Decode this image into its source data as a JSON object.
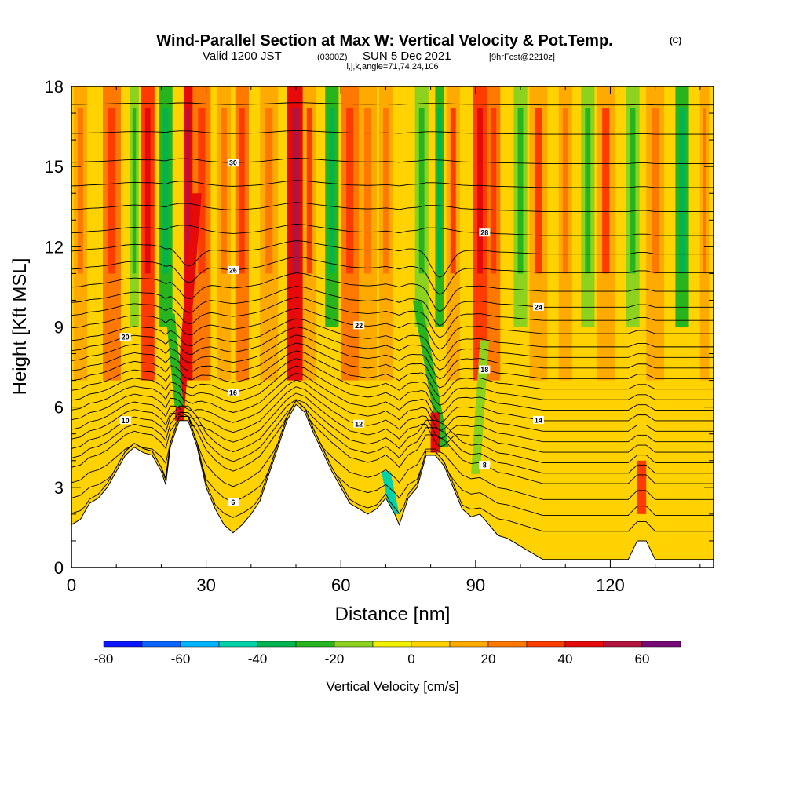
{
  "header": {
    "title": "Wind-Parallel Section at Max W: Vertical Velocity & Pot.Temp.",
    "title_mark": "(C)",
    "subtitle_valid": "Valid 1200 JST",
    "subtitle_utc": "(0300Z)",
    "subtitle_date": "SUN 5 Dec 2021",
    "subtitle_fcst": "[9hrFcst@2210z]",
    "params": "i,j,k,angle=71,74,24,106"
  },
  "chart_data": {
    "type": "heatmap",
    "xlabel": "Distance [nm]",
    "ylabel": "Height [Kft MSL]",
    "xlim": [
      0,
      143
    ],
    "ylim": [
      0,
      18
    ],
    "xticks": [
      0,
      30,
      60,
      90,
      120
    ],
    "yticks": [
      0,
      3,
      6,
      9,
      12,
      15,
      18
    ],
    "colorbar": {
      "label": "Vertical Velocity [cm/s]",
      "ticks": [
        -80,
        -60,
        -40,
        -20,
        0,
        20,
        40,
        60
      ],
      "bounds": [
        -80,
        -70,
        -60,
        -50,
        -40,
        -30,
        -20,
        -10,
        0,
        10,
        20,
        30,
        40,
        50,
        60,
        70
      ],
      "colors": [
        "#0a14ff",
        "#0a64ff",
        "#00b4ff",
        "#00d2aa",
        "#00b450",
        "#28b41e",
        "#8cd21e",
        "#f0f000",
        "#ffd200",
        "#ffaa00",
        "#ff7800",
        "#ff3c00",
        "#e60a0a",
        "#b4143c",
        "#780a78"
      ]
    },
    "terrain": [
      [
        0,
        1.6
      ],
      [
        2,
        1.8
      ],
      [
        4,
        2.4
      ],
      [
        6,
        2.6
      ],
      [
        8,
        3.0
      ],
      [
        10,
        3.6
      ],
      [
        12,
        4.2
      ],
      [
        14,
        4.5
      ],
      [
        16,
        4.3
      ],
      [
        18,
        4.2
      ],
      [
        20,
        3.6
      ],
      [
        21,
        3.1
      ],
      [
        22,
        4.5
      ],
      [
        24,
        5.5
      ],
      [
        26,
        5.5
      ],
      [
        28,
        4.5
      ],
      [
        30,
        3.0
      ],
      [
        32,
        2.2
      ],
      [
        34,
        1.6
      ],
      [
        36,
        1.3
      ],
      [
        38,
        1.6
      ],
      [
        40,
        2.0
      ],
      [
        42,
        2.5
      ],
      [
        44,
        3.5
      ],
      [
        46,
        4.5
      ],
      [
        48,
        5.5
      ],
      [
        50,
        6.1
      ],
      [
        52,
        5.8
      ],
      [
        54,
        5.0
      ],
      [
        56,
        4.3
      ],
      [
        58,
        3.6
      ],
      [
        60,
        3.0
      ],
      [
        62,
        2.4
      ],
      [
        64,
        2.2
      ],
      [
        66,
        2.0
      ],
      [
        68,
        2.2
      ],
      [
        70,
        2.6
      ],
      [
        72,
        2.0
      ],
      [
        73,
        1.6
      ],
      [
        75,
        2.6
      ],
      [
        77,
        3.0
      ],
      [
        79,
        4.2
      ],
      [
        81,
        4.2
      ],
      [
        83,
        3.8
      ],
      [
        85,
        3.0
      ],
      [
        87,
        2.2
      ],
      [
        89,
        1.9
      ],
      [
        91,
        2.0
      ],
      [
        93,
        1.6
      ],
      [
        95,
        1.2
      ],
      [
        97,
        1.1
      ],
      [
        99,
        0.9
      ],
      [
        101,
        0.7
      ],
      [
        103,
        0.5
      ],
      [
        105,
        0.3
      ],
      [
        108,
        0.3
      ],
      [
        112,
        0.3
      ],
      [
        118,
        0.3
      ],
      [
        124,
        0.3
      ],
      [
        126,
        1.0
      ],
      [
        128,
        1.0
      ],
      [
        130,
        0.3
      ],
      [
        136,
        0.3
      ],
      [
        143,
        0.3
      ]
    ],
    "columns": [
      {
        "x": 2,
        "w": 3,
        "v": 15
      },
      {
        "x": 9,
        "w": 4,
        "v": 22
      },
      {
        "x": 14,
        "w": 2,
        "v": -15
      },
      {
        "x": 17,
        "w": 3,
        "v": 30
      },
      {
        "x": 21,
        "w": 3,
        "v": -28
      },
      {
        "x": 26,
        "w": 2,
        "v": 45
      },
      {
        "x": 29,
        "w": 4,
        "v": 22
      },
      {
        "x": 34,
        "w": 3,
        "v": 14
      },
      {
        "x": 38,
        "w": 3,
        "v": 24
      },
      {
        "x": 44,
        "w": 4,
        "v": 12
      },
      {
        "x": 50,
        "w": 4,
        "v": 40
      },
      {
        "x": 53,
        "w": 3,
        "v": 18
      },
      {
        "x": 58,
        "w": 3,
        "v": -25
      },
      {
        "x": 62,
        "w": 4,
        "v": 22
      },
      {
        "x": 66,
        "w": 4,
        "v": 15
      },
      {
        "x": 70,
        "w": 3,
        "v": 12
      },
      {
        "x": 78,
        "w": 3,
        "v": -20
      },
      {
        "x": 82,
        "w": 2,
        "v": -25
      },
      {
        "x": 85,
        "w": 3,
        "v": 18
      },
      {
        "x": 91,
        "w": 3,
        "v": 32
      },
      {
        "x": 94,
        "w": 3,
        "v": 22
      },
      {
        "x": 100,
        "w": 3,
        "v": -15
      },
      {
        "x": 104,
        "w": 4,
        "v": 18
      },
      {
        "x": 110,
        "w": 3,
        "v": 16
      },
      {
        "x": 115,
        "w": 3,
        "v": -20
      },
      {
        "x": 119,
        "w": 4,
        "v": 18
      },
      {
        "x": 125,
        "w": 3,
        "v": -18
      },
      {
        "x": 130,
        "w": 4,
        "v": 14
      },
      {
        "x": 136,
        "w": 3,
        "v": -22
      },
      {
        "x": 141,
        "w": 2,
        "v": 12
      }
    ],
    "tilted_bands": [
      {
        "x0": 24,
        "y0": 5.5,
        "x1": 28,
        "y1": 14,
        "v": 42
      },
      {
        "x0": 24,
        "y0": 6.0,
        "x1": 22,
        "y1": 9.5,
        "v": -25
      },
      {
        "x0": 83,
        "y0": 4.5,
        "x1": 77,
        "y1": 10.0,
        "v": -25
      },
      {
        "x0": 81,
        "y0": 4.3,
        "x1": 81,
        "y1": 5.8,
        "v": 42
      },
      {
        "x0": 90,
        "y0": 3.5,
        "x1": 92,
        "y1": 8.5,
        "v": -18
      },
      {
        "x0": 72,
        "y0": 2.0,
        "x1": 70,
        "y1": 3.6,
        "v": -45
      },
      {
        "x0": 127,
        "y0": 2.0,
        "x1": 127,
        "y1": 4.0,
        "v": 38
      }
    ],
    "theta_lines": [
      {
        "base": 1.2,
        "lbl": ""
      },
      {
        "base": 1.8,
        "lbl": "6"
      },
      {
        "base": 2.4,
        "lbl": ""
      },
      {
        "base": 3.0,
        "lbl": "8"
      },
      {
        "base": 3.4,
        "lbl": ""
      },
      {
        "base": 3.8,
        "lbl": "10"
      },
      {
        "base": 4.2,
        "lbl": ""
      },
      {
        "base": 4.6,
        "lbl": "12"
      },
      {
        "base": 5.0,
        "lbl": ""
      },
      {
        "base": 5.4,
        "lbl": "14"
      },
      {
        "base": 5.8,
        "lbl": ""
      },
      {
        "base": 6.2,
        "lbl": "16"
      },
      {
        "base": 6.6,
        "lbl": ""
      },
      {
        "base": 7.0,
        "lbl": "18"
      },
      {
        "base": 7.4,
        "lbl": ""
      },
      {
        "base": 7.8,
        "lbl": "20"
      },
      {
        "base": 8.2,
        "lbl": ""
      },
      {
        "base": 8.7,
        "lbl": "22"
      },
      {
        "base": 9.2,
        "lbl": ""
      },
      {
        "base": 9.7,
        "lbl": "24"
      },
      {
        "base": 10.3,
        "lbl": ""
      },
      {
        "base": 11.0,
        "lbl": "26"
      },
      {
        "base": 11.7,
        "lbl": ""
      },
      {
        "base": 12.4,
        "lbl": "28"
      },
      {
        "base": 13.3,
        "lbl": ""
      },
      {
        "base": 14.2,
        "lbl": ""
      },
      {
        "base": 15.1,
        "lbl": "30"
      },
      {
        "base": 16.2,
        "lbl": ""
      },
      {
        "base": 17.3,
        "lbl": ""
      }
    ]
  }
}
